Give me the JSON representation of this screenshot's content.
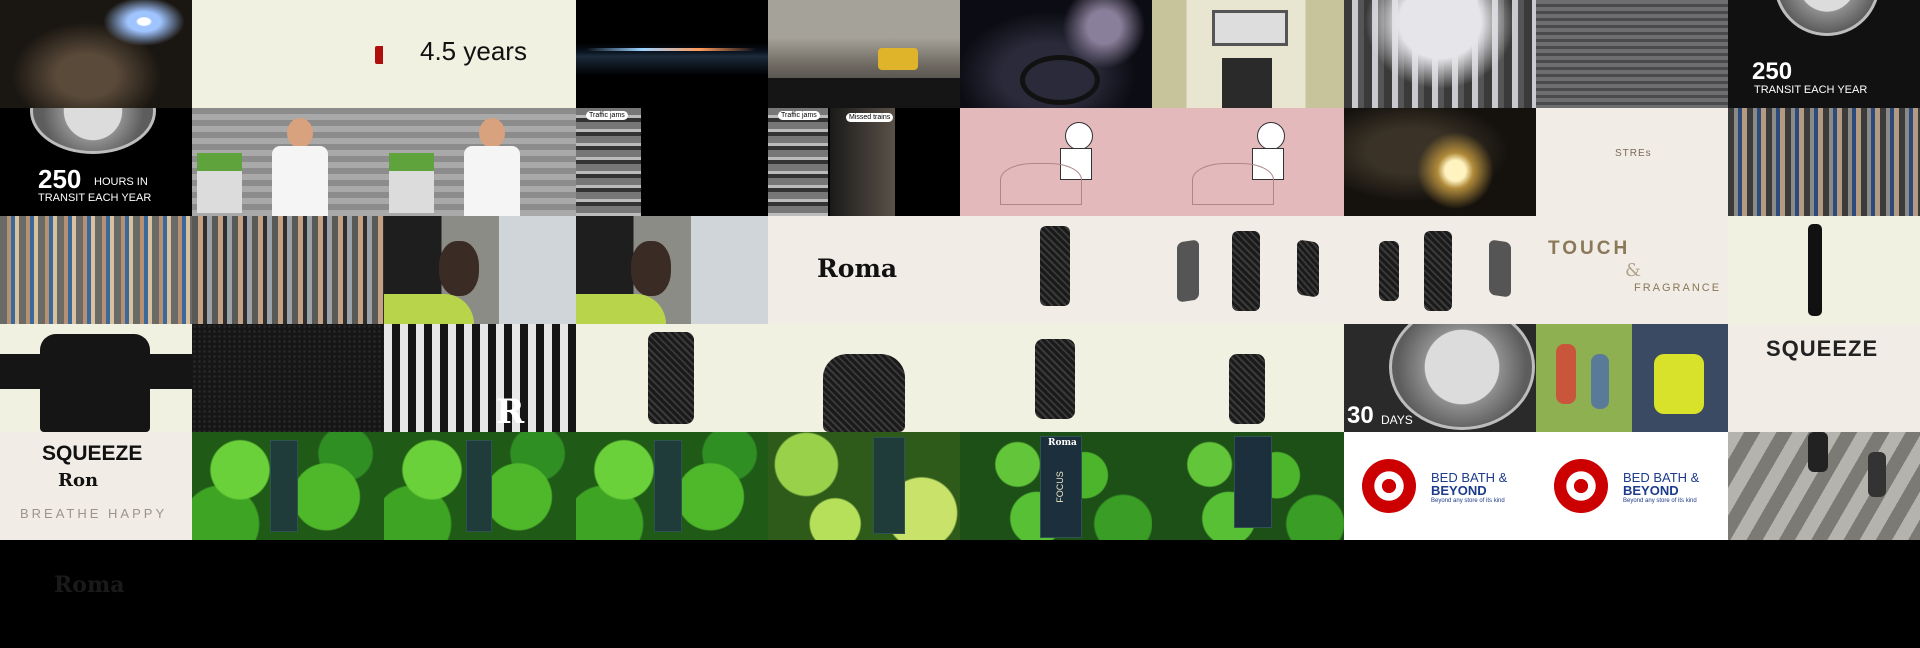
{
  "frames": {
    "stat_years": "4.5 years",
    "stat_250_top_number": "250",
    "stat_250_top_label": "TRANSIT EACH YEAR",
    "stat_250_number": "250",
    "stat_250_label_1": "HOURS IN",
    "stat_250_label_2": "TRANSIT EACH YEAR",
    "bubble_traffic_1": "Traffic jams",
    "bubble_traffic_2": "Traffic jams",
    "bubble_missed_trains": "Missed trains",
    "word_stress": "STREs",
    "brand_roma": "Roma",
    "touch": "TOUCH",
    "ampersand": "&",
    "fragrance": "FRAGRANCE",
    "days_number": "30",
    "days_label": "DAYS",
    "squeeze_1": "SQUEEZE",
    "squeeze_2": "SQUEEZE",
    "brand_ron": "Ron",
    "breathe_happy": "BREATHE HAPPY",
    "bbb_1_line1": "BED BATH &",
    "bbb_1_line2": "BEYOND",
    "bbb_1_tagline": "Beyond any store of its kind",
    "bbb_2_line1": "BED BATH &",
    "bbb_2_line2": "BEYOND",
    "bbb_2_tagline": "Beyond any store of its kind",
    "bottom_logo": "Roma",
    "pack_label": "Roma",
    "focus_label": "FOCUS"
  }
}
